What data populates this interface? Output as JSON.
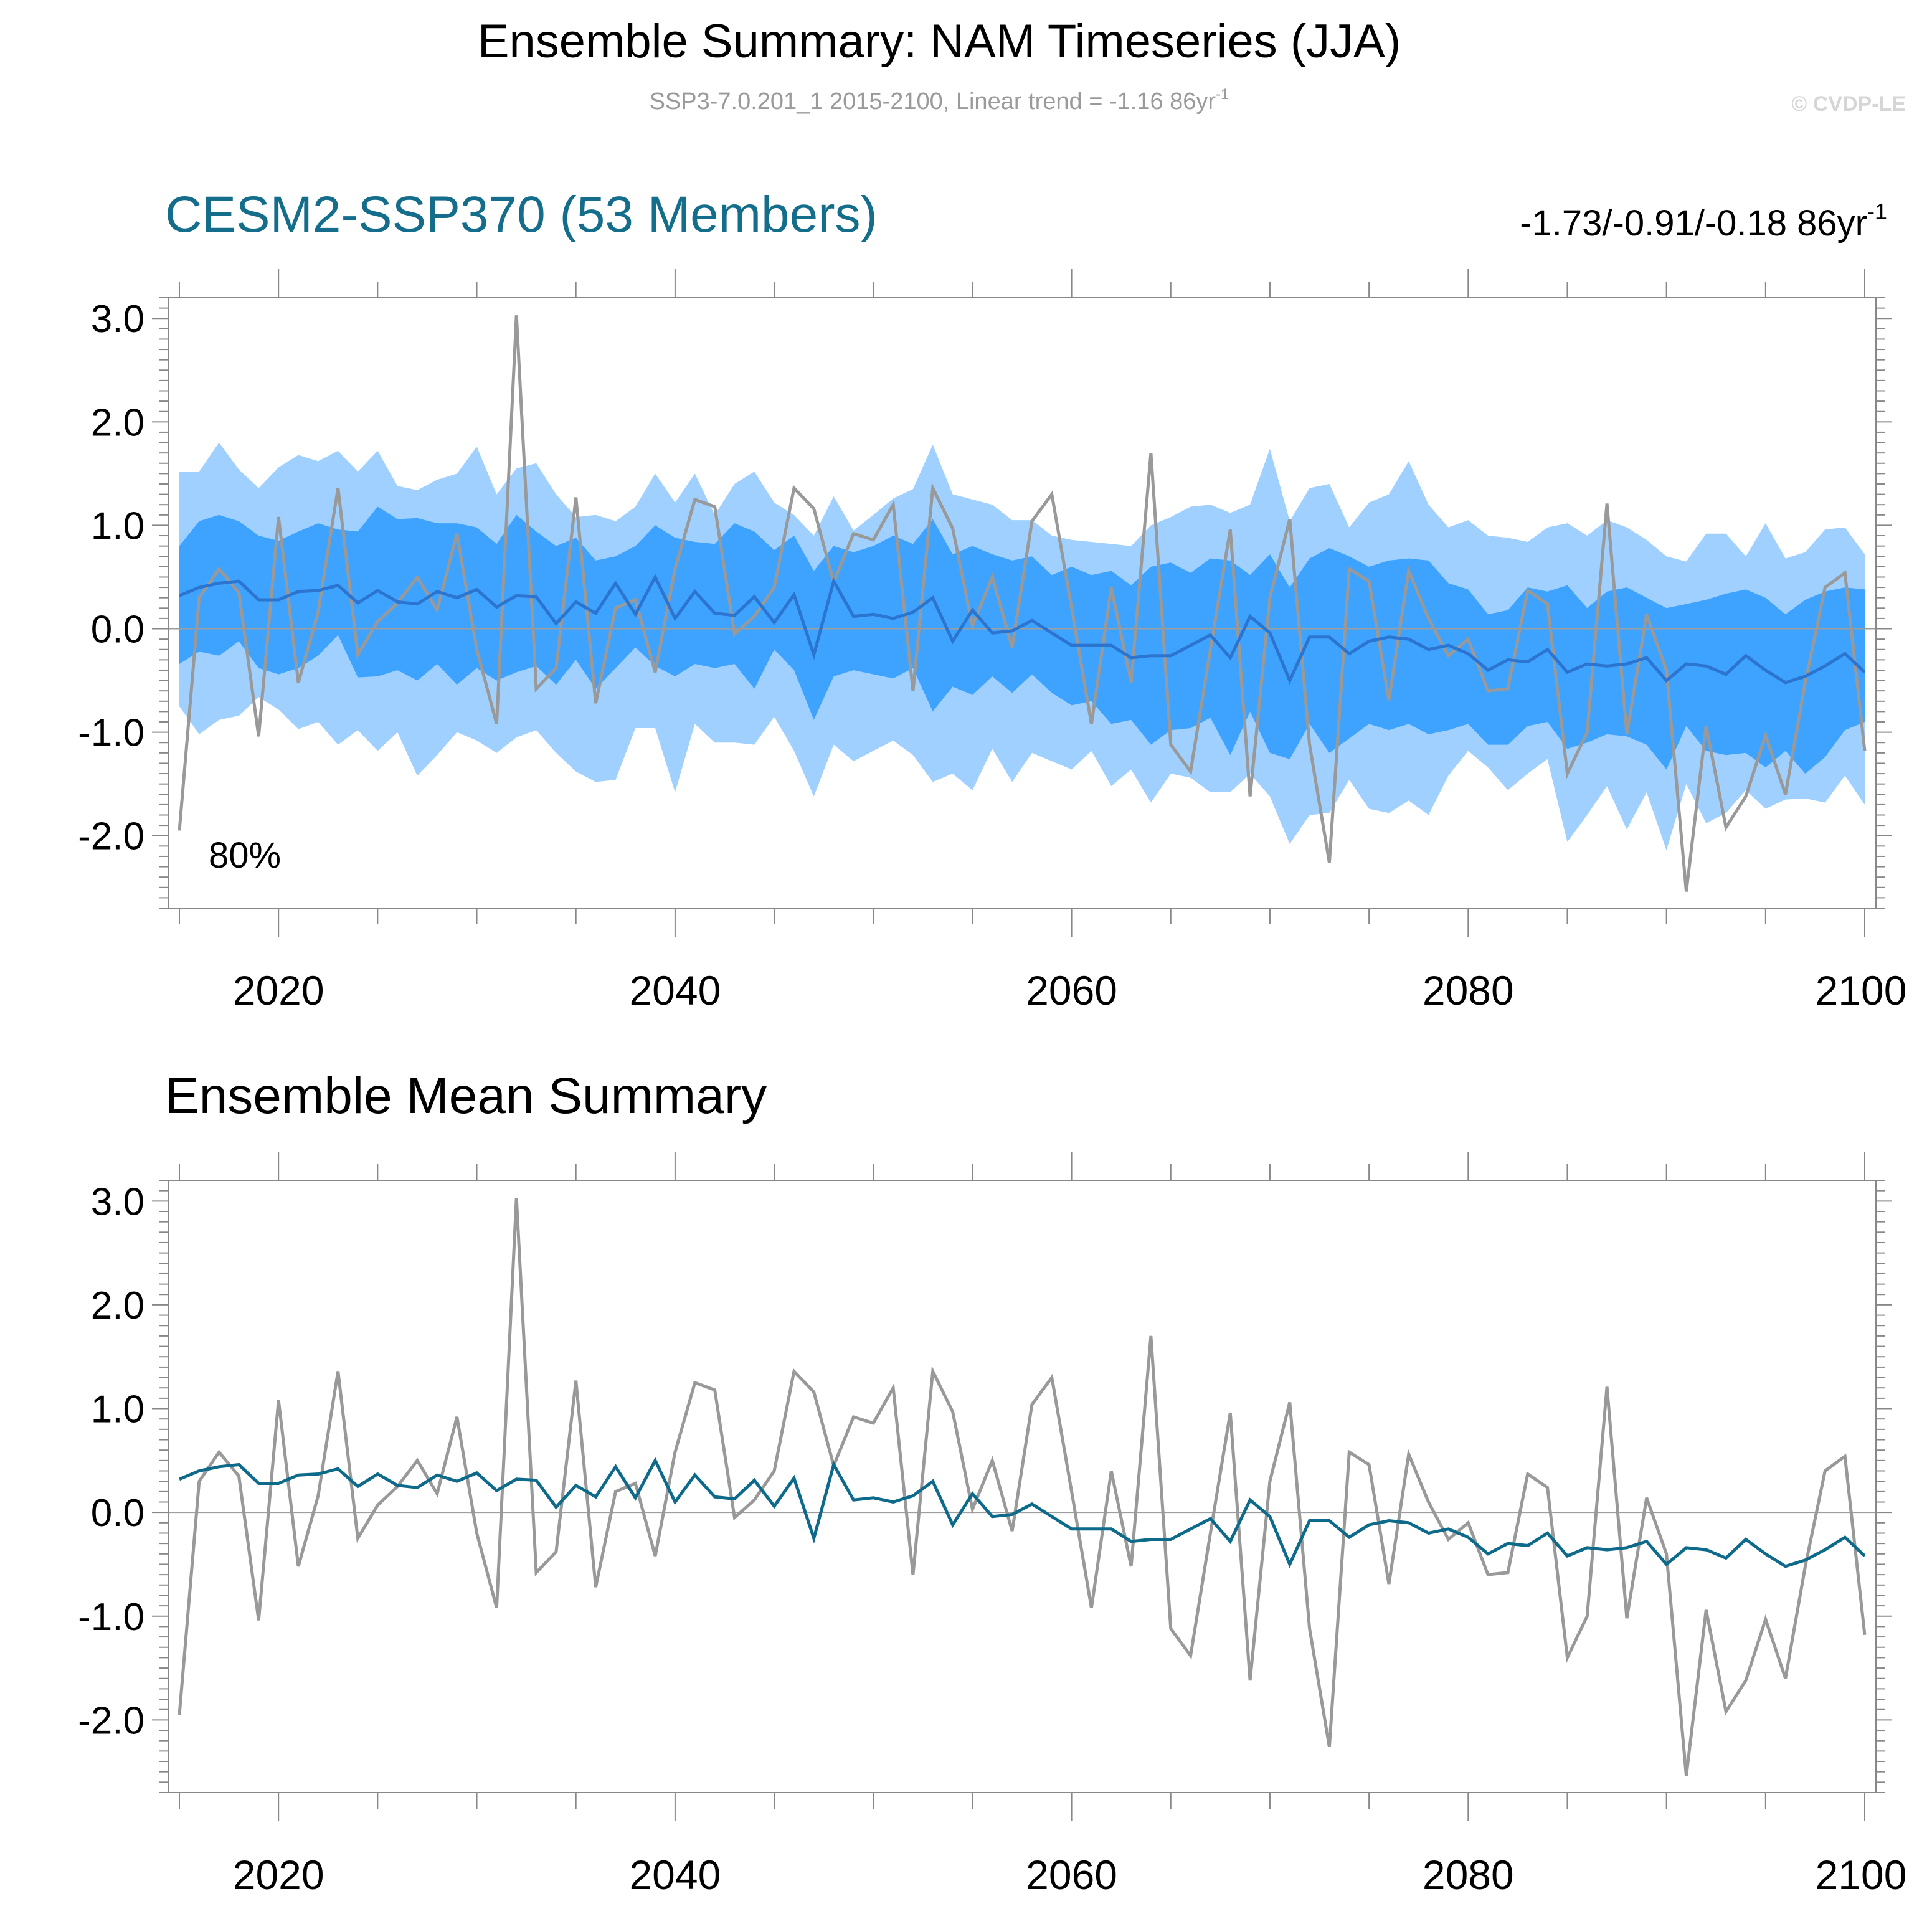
{
  "header": {
    "title": "Ensemble Summary: NAM Timeseries (JJA)",
    "subtitle": "SSP3-7.0.201_1 2015-2100, Linear trend = -1.16 86yr",
    "subtitle_sup": "-1",
    "copyright": "© CVDP-LE"
  },
  "colors": {
    "outer_band": "#9fd0ff",
    "inner_band": "#3ea2ff",
    "ens_mean_top": "#2b74d0",
    "ens_mean_bottom": "#0e6a8a",
    "observed": "#999999",
    "title_accent": "#156d8c",
    "zero_line": "#9e9e9e",
    "axis": "#888888",
    "text": "#000000",
    "subtitle": "#9a9a9a"
  },
  "chart_data": [
    {
      "type": "line",
      "panel": "top",
      "title": "CESM2-SSP370 (53 Members)",
      "trend_label": "-1.73/-0.91/-0.18 86yr",
      "trend_sup": "-1",
      "annotation": "80%",
      "xlabel": "",
      "ylabel": "",
      "xlim": [
        2015,
        2100
      ],
      "ylim": [
        -2.7,
        3.2
      ],
      "x_ticks": [
        2020,
        2040,
        2060,
        2080,
        2100
      ],
      "y_ticks": [
        3,
        2,
        1,
        0,
        -1,
        -2
      ],
      "y_tick_labels": [
        "3.0",
        "2.0",
        "1.0",
        "0.0",
        "-1.0",
        "-2.0"
      ],
      "x": [
        2015,
        2016,
        2017,
        2018,
        2019,
        2020,
        2021,
        2022,
        2023,
        2024,
        2025,
        2026,
        2027,
        2028,
        2029,
        2030,
        2031,
        2032,
        2033,
        2034,
        2035,
        2036,
        2037,
        2038,
        2039,
        2040,
        2041,
        2042,
        2043,
        2044,
        2045,
        2046,
        2047,
        2048,
        2049,
        2050,
        2051,
        2052,
        2053,
        2054,
        2055,
        2056,
        2057,
        2058,
        2059,
        2060,
        2061,
        2062,
        2063,
        2064,
        2065,
        2066,
        2067,
        2068,
        2069,
        2070,
        2071,
        2072,
        2073,
        2074,
        2075,
        2076,
        2077,
        2078,
        2079,
        2080,
        2081,
        2082,
        2083,
        2084,
        2085,
        2086,
        2087,
        2088,
        2089,
        2090,
        2091,
        2092,
        2093,
        2094,
        2095,
        2096,
        2097,
        2098,
        2099,
        2100
      ],
      "series": [
        {
          "name": "Ensemble range (outer)",
          "kind": "band",
          "upper": [
            1.52,
            1.52,
            1.8,
            1.54,
            1.36,
            1.56,
            1.68,
            1.62,
            1.72,
            1.52,
            1.72,
            1.38,
            1.34,
            1.44,
            1.5,
            1.76,
            1.3,
            1.55,
            1.6,
            1.3,
            1.08,
            1.1,
            1.04,
            1.18,
            1.5,
            1.22,
            1.5,
            1.1,
            1.4,
            1.52,
            1.22,
            1.1,
            0.9,
            1.28,
            0.95,
            1.1,
            1.26,
            1.35,
            1.78,
            1.3,
            1.25,
            1.2,
            1.05,
            1.05,
            0.9,
            0.86,
            0.84,
            0.82,
            0.8,
            1.0,
            1.08,
            1.18,
            1.2,
            1.12,
            1.2,
            1.74,
            1.04,
            1.36,
            1.4,
            0.98,
            1.22,
            1.3,
            1.62,
            1.2,
            0.98,
            1.05,
            0.9,
            0.88,
            0.84,
            0.98,
            1.02,
            0.9,
            1.05,
            0.98,
            0.86,
            0.7,
            0.65,
            0.92,
            0.92,
            0.7,
            1.02,
            0.68,
            0.74,
            0.96,
            0.98,
            0.72
          ],
          "lower": [
            -0.75,
            -1.02,
            -0.88,
            -0.84,
            -0.66,
            -0.78,
            -0.97,
            -0.9,
            -1.12,
            -0.98,
            -1.18,
            -1.0,
            -1.42,
            -1.22,
            -1.0,
            -1.08,
            -1.2,
            -1.05,
            -0.98,
            -1.2,
            -1.38,
            -1.48,
            -1.46,
            -0.96,
            -0.96,
            -1.58,
            -0.92,
            -1.1,
            -1.1,
            -1.12,
            -0.85,
            -1.18,
            -1.62,
            -1.12,
            -1.28,
            -1.18,
            -1.08,
            -1.22,
            -1.48,
            -1.4,
            -1.56,
            -1.16,
            -1.48,
            -1.2,
            -1.28,
            -1.36,
            -1.18,
            -1.52,
            -1.36,
            -1.68,
            -1.4,
            -1.44,
            -1.58,
            -1.58,
            -1.4,
            -1.62,
            -2.08,
            -1.8,
            -1.78,
            -1.46,
            -1.74,
            -1.78,
            -1.66,
            -1.8,
            -1.42,
            -1.18,
            -1.34,
            -1.56,
            -1.4,
            -1.26,
            -2.06,
            -1.8,
            -1.52,
            -1.94,
            -1.58,
            -2.14,
            -1.5,
            -1.88,
            -1.78,
            -1.56,
            -1.74,
            -1.65,
            -1.64,
            -1.68,
            -1.42,
            -1.7
          ]
        },
        {
          "name": "Interquartile range (inner)",
          "kind": "band",
          "upper": [
            0.8,
            1.04,
            1.1,
            1.04,
            0.9,
            0.85,
            0.94,
            1.02,
            0.96,
            0.94,
            1.18,
            1.06,
            1.07,
            1.02,
            1.02,
            0.98,
            0.82,
            1.1,
            0.94,
            0.8,
            0.88,
            0.66,
            0.7,
            0.8,
            1.0,
            0.88,
            0.84,
            0.82,
            1.02,
            0.94,
            0.76,
            0.9,
            0.56,
            0.8,
            0.74,
            0.8,
            0.9,
            0.82,
            1.06,
            0.72,
            0.8,
            0.72,
            0.66,
            0.7,
            0.52,
            0.6,
            0.52,
            0.56,
            0.42,
            0.6,
            0.64,
            0.54,
            0.68,
            0.66,
            0.52,
            0.72,
            0.4,
            0.68,
            0.78,
            0.7,
            0.6,
            0.66,
            0.68,
            0.66,
            0.44,
            0.38,
            0.14,
            0.18,
            0.4,
            0.36,
            0.42,
            0.2,
            0.36,
            0.4,
            0.3,
            0.2,
            0.24,
            0.28,
            0.34,
            0.38,
            0.3,
            0.14,
            0.28,
            0.36,
            0.4,
            0.38
          ],
          "lower": [
            -0.34,
            -0.22,
            -0.26,
            -0.12,
            -0.38,
            -0.44,
            -0.38,
            -0.26,
            -0.06,
            -0.47,
            -0.46,
            -0.4,
            -0.5,
            -0.34,
            -0.54,
            -0.38,
            -0.5,
            -0.42,
            -0.36,
            -0.54,
            -0.3,
            -0.58,
            -0.38,
            -0.18,
            -0.36,
            -0.46,
            -0.34,
            -0.38,
            -0.34,
            -0.58,
            -0.2,
            -0.4,
            -0.88,
            -0.46,
            -0.4,
            -0.44,
            -0.48,
            -0.38,
            -0.8,
            -0.56,
            -0.64,
            -0.46,
            -0.62,
            -0.44,
            -0.62,
            -0.74,
            -0.7,
            -0.92,
            -0.88,
            -1.12,
            -0.98,
            -0.96,
            -0.86,
            -1.22,
            -0.8,
            -1.2,
            -1.26,
            -0.92,
            -1.2,
            -1.06,
            -0.92,
            -0.98,
            -0.92,
            -1.02,
            -0.98,
            -0.92,
            -1.12,
            -1.12,
            -0.94,
            -0.9,
            -1.16,
            -1.1,
            -1.02,
            -1.04,
            -1.12,
            -1.36,
            -0.94,
            -1.18,
            -1.22,
            -1.2,
            -1.34,
            -1.18,
            -1.4,
            -1.24,
            -0.98,
            -0.9
          ]
        },
        {
          "name": "Ensemble mean",
          "kind": "line",
          "values": [
            0.32,
            0.4,
            0.44,
            0.46,
            0.28,
            0.28,
            0.36,
            0.37,
            0.42,
            0.25,
            0.37,
            0.26,
            0.24,
            0.36,
            0.3,
            0.38,
            0.21,
            0.32,
            0.31,
            0.05,
            0.26,
            0.15,
            0.44,
            0.14,
            0.5,
            0.1,
            0.36,
            0.15,
            0.13,
            0.31,
            0.06,
            0.33,
            -0.25,
            0.46,
            0.12,
            0.14,
            0.1,
            0.16,
            0.3,
            -0.12,
            0.18,
            -0.04,
            -0.02,
            0.08,
            -0.04,
            -0.16,
            -0.16,
            -0.16,
            -0.28,
            -0.26,
            -0.26,
            -0.16,
            -0.06,
            -0.28,
            0.12,
            -0.04,
            -0.5,
            -0.08,
            -0.08,
            -0.24,
            -0.12,
            -0.08,
            -0.1,
            -0.2,
            -0.16,
            -0.24,
            -0.4,
            -0.3,
            -0.32,
            -0.2,
            -0.42,
            -0.34,
            -0.36,
            -0.34,
            -0.28,
            -0.5,
            -0.34,
            -0.36,
            -0.44,
            -0.26,
            -0.4,
            -0.52,
            -0.46,
            -0.36,
            -0.24,
            -0.42
          ]
        },
        {
          "name": "Observations",
          "kind": "line",
          "values": [
            -1.95,
            0.3,
            0.58,
            0.35,
            -1.04,
            1.08,
            -0.52,
            0.16,
            1.36,
            -0.25,
            0.07,
            0.25,
            0.5,
            0.18,
            0.92,
            -0.2,
            -0.92,
            3.03,
            -0.58,
            -0.38,
            1.27,
            -0.72,
            0.2,
            0.28,
            -0.42,
            0.58,
            1.25,
            1.18,
            -0.05,
            0.12,
            0.4,
            1.36,
            1.16,
            0.45,
            0.92,
            0.86,
            1.2,
            -0.6,
            1.36,
            0.97,
            0.03,
            0.5,
            -0.18,
            1.04,
            1.3,
            0.2,
            -0.92,
            0.4,
            -0.52,
            1.7,
            -1.12,
            -1.38,
            -0.2,
            0.96,
            -1.62,
            0.3,
            1.06,
            -1.12,
            -2.26,
            0.58,
            0.46,
            -0.69,
            0.56,
            0.1,
            -0.26,
            -0.1,
            -0.6,
            -0.58,
            0.37,
            0.24,
            -1.4,
            -1.0,
            1.21,
            -1.02,
            0.14,
            -0.4,
            -2.54,
            -0.94,
            -1.92,
            -1.62,
            -1.03,
            -1.6,
            -0.52,
            0.4,
            0.54,
            -1.18
          ]
        }
      ]
    },
    {
      "type": "line",
      "panel": "bottom",
      "title": "Ensemble Mean Summary",
      "xlim": [
        2015,
        2100
      ],
      "ylim": [
        -2.7,
        3.2
      ],
      "x_ticks": [
        2020,
        2040,
        2060,
        2080,
        2100
      ],
      "y_ticks": [
        3,
        2,
        1,
        0,
        -1,
        -2
      ],
      "y_tick_labels": [
        "3.0",
        "2.0",
        "1.0",
        "0.0",
        "-1.0",
        "-2.0"
      ],
      "series_ref": "same x, ensemble mean and observations as the top panel"
    }
  ]
}
